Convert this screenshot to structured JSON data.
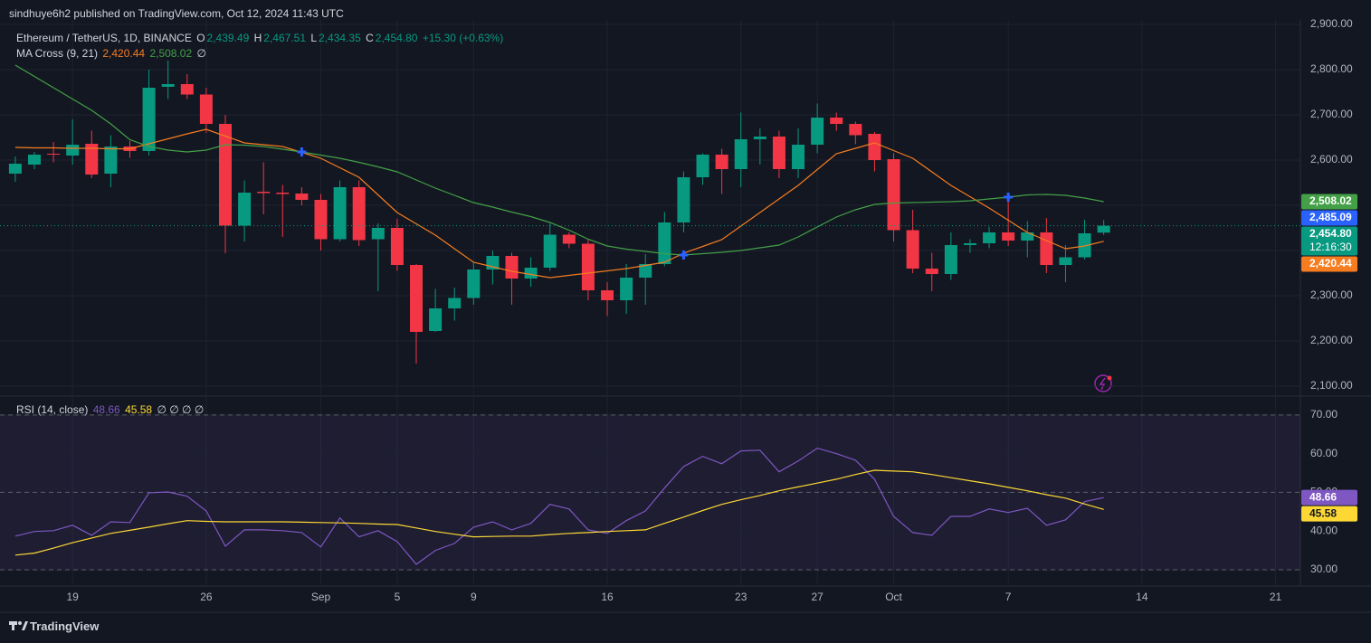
{
  "header": "sindhuye6h2 published on TradingView.com, Oct 12, 2024 11:43 UTC",
  "footer": "TradingView",
  "chart_data": [
    {
      "type": "candlestick",
      "title": "Ethereum / TetherUS, 1D, BINANCE",
      "ohlc_keys": [
        "O",
        "H",
        "L",
        "C"
      ],
      "last_labels": {
        "open": "2,439.49",
        "high": "2,467.51",
        "low": "2,434.35",
        "close": "2,454.80",
        "change": "+15.30 (+0.63%)"
      },
      "countdown": "12:16:30",
      "indicator": "MA Cross (9, 21)",
      "indicator_status": "∅",
      "up_color": "#089981",
      "down_color": "#f23645",
      "grid": true,
      "xlim": [
        -0.8,
        67.3
      ],
      "xticks": [
        {
          "value": 3,
          "label": "19"
        },
        {
          "value": 10,
          "label": "26"
        },
        {
          "value": 16,
          "label": "Sep"
        },
        {
          "value": 20,
          "label": "5"
        },
        {
          "value": 24,
          "label": "9"
        },
        {
          "value": 31,
          "label": "16"
        },
        {
          "value": 38,
          "label": "23"
        },
        {
          "value": 42,
          "label": "27"
        },
        {
          "value": 46,
          "label": "Oct"
        },
        {
          "value": 52,
          "label": "7"
        },
        {
          "value": 59,
          "label": "14"
        },
        {
          "value": 66,
          "label": "21"
        }
      ],
      "ylim": [
        2080,
        2910
      ],
      "yticks": [
        {
          "value": 2100,
          "label": "2,100.00"
        },
        {
          "value": 2200,
          "label": "2,200.00"
        },
        {
          "value": 2300,
          "label": "2,300.00"
        },
        {
          "value": 2400,
          "label": "2,400.00"
        },
        {
          "value": 2500,
          "label": "2,500.00"
        },
        {
          "value": 2600,
          "label": "2,600.00"
        },
        {
          "value": 2700,
          "label": "2,700.00"
        },
        {
          "value": 2800,
          "label": "2,800.00"
        },
        {
          "value": 2900,
          "label": "2,900.00"
        }
      ],
      "x": [
        0,
        1,
        2,
        3,
        4,
        5,
        6,
        7,
        8,
        9,
        10,
        11,
        12,
        13,
        14,
        15,
        16,
        17,
        18,
        19,
        20,
        21,
        22,
        23,
        24,
        25,
        26,
        27,
        28,
        29,
        30,
        31,
        32,
        33,
        34,
        35,
        36,
        37,
        38,
        39,
        40,
        41,
        42,
        43,
        44,
        45,
        46,
        47,
        48,
        49,
        50,
        51,
        52,
        53,
        54,
        55,
        56,
        57
      ],
      "open": [
        2570,
        2590,
        2614,
        2610,
        2636,
        2570,
        2630,
        2620,
        2762,
        2768,
        2745,
        2680,
        2455,
        2530,
        2528,
        2526,
        2512,
        2425,
        2540,
        2425,
        2450,
        2368,
        2222,
        2272,
        2295,
        2358,
        2388,
        2338,
        2362,
        2435,
        2415,
        2312,
        2290,
        2340,
        2370,
        2462,
        2562,
        2612,
        2580,
        2646,
        2652,
        2580,
        2634,
        2694,
        2680,
        2658,
        2602,
        2445,
        2360,
        2348,
        2412,
        2416,
        2440,
        2422,
        2440,
        2368,
        2385,
        2439.49
      ],
      "high": [
        2608,
        2618,
        2640,
        2690,
        2665,
        2655,
        2642,
        2800,
        2820,
        2790,
        2760,
        2700,
        2555,
        2595,
        2545,
        2540,
        2525,
        2555,
        2555,
        2460,
        2470,
        2370,
        2315,
        2318,
        2375,
        2400,
        2395,
        2385,
        2460,
        2440,
        2425,
        2330,
        2370,
        2392,
        2485,
        2575,
        2615,
        2625,
        2705,
        2670,
        2665,
        2670,
        2725,
        2705,
        2685,
        2662,
        2615,
        2490,
        2395,
        2440,
        2425,
        2452,
        2522,
        2465,
        2472,
        2412,
        2468,
        2467.51
      ],
      "low": [
        2552,
        2580,
        2595,
        2590,
        2560,
        2540,
        2605,
        2610,
        2735,
        2735,
        2660,
        2394,
        2420,
        2480,
        2430,
        2500,
        2400,
        2420,
        2410,
        2310,
        2355,
        2150,
        2220,
        2245,
        2280,
        2325,
        2280,
        2320,
        2355,
        2405,
        2290,
        2255,
        2260,
        2280,
        2365,
        2440,
        2545,
        2525,
        2540,
        2590,
        2560,
        2560,
        2615,
        2665,
        2635,
        2575,
        2420,
        2350,
        2310,
        2335,
        2395,
        2405,
        2410,
        2385,
        2350,
        2330,
        2380,
        2434.35
      ],
      "close": [
        2592,
        2612,
        2612,
        2634,
        2568,
        2630,
        2620,
        2760,
        2768,
        2745,
        2680,
        2455,
        2528,
        2527,
        2525,
        2512,
        2425,
        2540,
        2423,
        2450,
        2368,
        2220,
        2272,
        2295,
        2358,
        2388,
        2338,
        2362,
        2435,
        2415,
        2312,
        2290,
        2340,
        2370,
        2462,
        2562,
        2612,
        2580,
        2646,
        2652,
        2580,
        2634,
        2694,
        2680,
        2655,
        2600,
        2445,
        2360,
        2348,
        2412,
        2416,
        2440,
        2422,
        2440,
        2368,
        2385,
        2438,
        2454.8
      ],
      "series": [
        {
          "color": "#f57c1f",
          "last_label": "2,420.44",
          "values": [
            2628,
            2627,
            2627,
            2626,
            2626,
            2625,
            2625,
            2636,
            2647,
            2658,
            2668,
            2653,
            2638,
            2634,
            2630,
            2617,
            2604,
            2583,
            2562,
            2523,
            2484,
            2459,
            2434,
            2404,
            2374,
            2364,
            2354,
            2347,
            2340,
            2345,
            2350,
            2355,
            2360,
            2367,
            2374,
            2394,
            2409,
            2424,
            2454,
            2484,
            2514,
            2544,
            2579,
            2614,
            2626,
            2638,
            2621,
            2604,
            2574,
            2544,
            2519,
            2494,
            2467,
            2440,
            2422,
            2404,
            2410,
            2420.44
          ]
        },
        {
          "color": "#43a047",
          "last_label": "2,508.02",
          "values": [
            2810,
            2785,
            2760,
            2735,
            2710,
            2680,
            2645,
            2630,
            2622,
            2618,
            2622,
            2634,
            2633,
            2630,
            2624,
            2618,
            2611,
            2604,
            2595,
            2585,
            2574,
            2556,
            2538,
            2522,
            2506,
            2496,
            2485,
            2475,
            2462,
            2445,
            2425,
            2410,
            2403,
            2398,
            2393,
            2390,
            2393,
            2396,
            2400,
            2406,
            2412,
            2430,
            2452,
            2474,
            2490,
            2502,
            2505,
            2506,
            2507,
            2508,
            2510,
            2514,
            2518,
            2523,
            2524,
            2522,
            2516,
            2508.02
          ]
        }
      ],
      "crosses": [
        15,
        35,
        52
      ],
      "cross_color": "#2962ff",
      "price_lines": [
        {
          "value": 2485.09,
          "label": "2,485.09",
          "color": "#2962ff"
        }
      ]
    },
    {
      "type": "line",
      "title": "RSI (14, close)",
      "indicator_status": "∅ ∅ ∅ ∅",
      "grid": true,
      "xlim": [
        -0.8,
        67.3
      ],
      "ylim": [
        25.8,
        74.4
      ],
      "yticks": [
        {
          "value": 30,
          "label": "30.00"
        },
        {
          "value": 40,
          "label": "40.00"
        },
        {
          "value": 50,
          "label": "50.00"
        },
        {
          "value": 60,
          "label": "60.00"
        },
        {
          "value": 70,
          "label": "70.00"
        }
      ],
      "band": {
        "upper": 70,
        "middle": 50,
        "lower": 30
      },
      "x": [
        0,
        1,
        2,
        3,
        4,
        5,
        6,
        7,
        8,
        9,
        10,
        11,
        12,
        13,
        14,
        15,
        16,
        17,
        18,
        19,
        20,
        21,
        22,
        23,
        24,
        25,
        26,
        27,
        28,
        29,
        30,
        31,
        32,
        33,
        34,
        35,
        36,
        37,
        38,
        39,
        40,
        41,
        42,
        43,
        44,
        45,
        46,
        47,
        48,
        49,
        50,
        51,
        52,
        53,
        54,
        55,
        56,
        57
      ],
      "series": [
        {
          "color": "#7e57c2",
          "last_label": "48.66",
          "values": [
            38.7,
            39.9,
            40.1,
            41.5,
            38.9,
            42.4,
            42.2,
            49.9,
            50.1,
            49.0,
            45.2,
            36.1,
            40.3,
            40.3,
            40.1,
            39.6,
            35.9,
            43.4,
            38.5,
            40.1,
            37.3,
            31.4,
            35.0,
            36.8,
            41.0,
            42.4,
            40.3,
            42.0,
            46.9,
            45.7,
            40.3,
            39.4,
            42.7,
            45.2,
            51.1,
            56.7,
            59.3,
            57.4,
            60.7,
            60.9,
            55.3,
            58.1,
            61.4,
            60.0,
            58.3,
            53.4,
            43.8,
            39.6,
            38.9,
            43.8,
            43.8,
            45.7,
            44.8,
            45.9,
            41.5,
            42.9,
            47.6,
            48.66
          ]
        },
        {
          "color": "#fdd835",
          "last_label": "45.58",
          "values": [
            33.8,
            34.3,
            35.6,
            37,
            38.2,
            39.4,
            40.2,
            41,
            41.9,
            42.7,
            42.5,
            42.4,
            42.4,
            42.4,
            42.4,
            42.3,
            42.2,
            42.1,
            42,
            41.8,
            41.7,
            40.8,
            39.9,
            39.2,
            38.5,
            38.6,
            38.7,
            38.7,
            39.1,
            39.4,
            39.6,
            39.9,
            40.1,
            40.3,
            42,
            43.6,
            45.3,
            46.9,
            48.1,
            49.2,
            50.4,
            51.4,
            52.4,
            53.4,
            54.6,
            55.7,
            55.5,
            55.3,
            54.6,
            53.8,
            53,
            52.2,
            51.3,
            50.4,
            49.4,
            48.5,
            47,
            45.58
          ]
        }
      ]
    }
  ]
}
